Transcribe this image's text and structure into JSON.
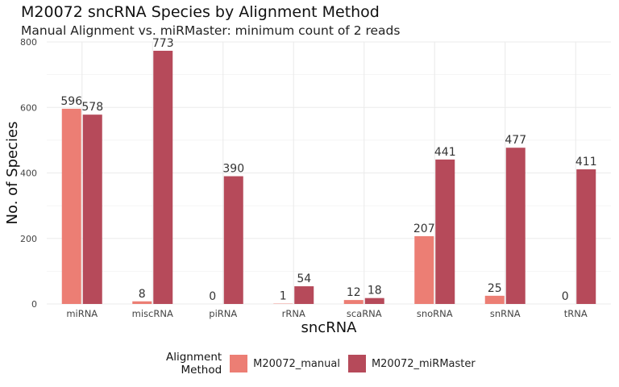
{
  "title": "M20072 sncRNA Species by Alignment Method",
  "subtitle": "Manual Alignment vs. miRMaster: minimum count of 2 reads",
  "legend": {
    "title_line1": "Alignment",
    "title_line2": "Method"
  },
  "colors": {
    "manual": "#ec7e74",
    "mirmaster": "#b64a5a",
    "grid": "#ebebeb"
  },
  "chart_data": {
    "type": "bar",
    "xlabel": "sncRNA",
    "ylabel": "No. of Species",
    "ylim": [
      0,
      800
    ],
    "yticks": [
      0,
      200,
      400,
      600,
      800
    ],
    "grid": true,
    "legend_position": "bottom",
    "categories": [
      "miRNA",
      "miscRNA",
      "piRNA",
      "rRNA",
      "scaRNA",
      "snoRNA",
      "snRNA",
      "tRNA"
    ],
    "series": [
      {
        "name": "M20072_manual",
        "values": [
          596,
          8,
          0,
          1,
          12,
          207,
          25,
          0
        ]
      },
      {
        "name": "M20072_miRMaster",
        "values": [
          578,
          773,
          390,
          54,
          18,
          441,
          477,
          411
        ]
      }
    ]
  }
}
